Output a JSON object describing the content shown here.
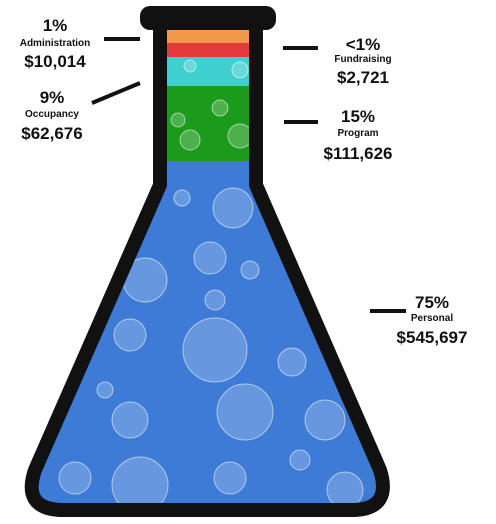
{
  "segments": [
    {
      "percent": "1%",
      "name": "Administration",
      "amount": "$10,014"
    },
    {
      "percent": "<1%",
      "name": "Fundraising",
      "amount": "$2,721"
    },
    {
      "percent": "9%",
      "name": "Occupancy",
      "amount": "$62,676"
    },
    {
      "percent": "15%",
      "name": "Program",
      "amount": "$111,626"
    },
    {
      "percent": "75%",
      "name": "Personal",
      "amount": "$545,697"
    }
  ]
}
